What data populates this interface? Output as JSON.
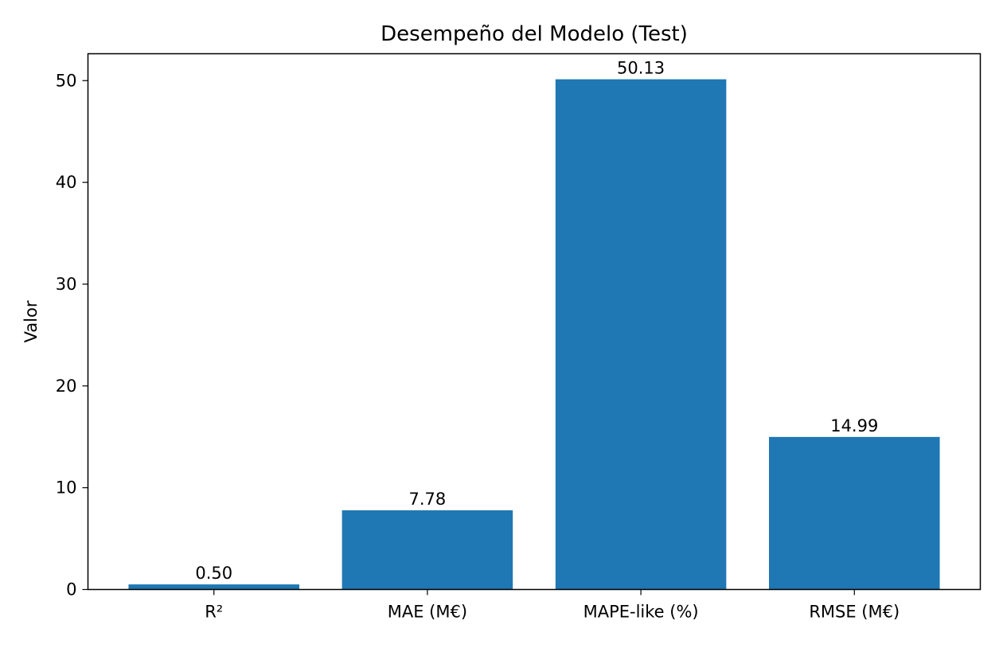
{
  "chart_data": {
    "type": "bar",
    "title": "Desempeño del Modelo (Test)",
    "xlabel": "",
    "ylabel": "Valor",
    "categories": [
      "R²",
      "MAE (M€)",
      "MAPE-like (%)",
      "RMSE (M€)"
    ],
    "values": [
      0.5,
      7.78,
      50.13,
      14.99
    ],
    "value_labels": [
      "0.50",
      "7.78",
      "50.13",
      "14.99"
    ],
    "ylim": [
      0,
      52.64
    ],
    "yticks": [
      0,
      10,
      20,
      30,
      40,
      50
    ],
    "ytick_labels": [
      "0",
      "10",
      "20",
      "30",
      "40",
      "50"
    ],
    "bar_color": "#1f77b4",
    "grid": false,
    "legend": "none"
  }
}
